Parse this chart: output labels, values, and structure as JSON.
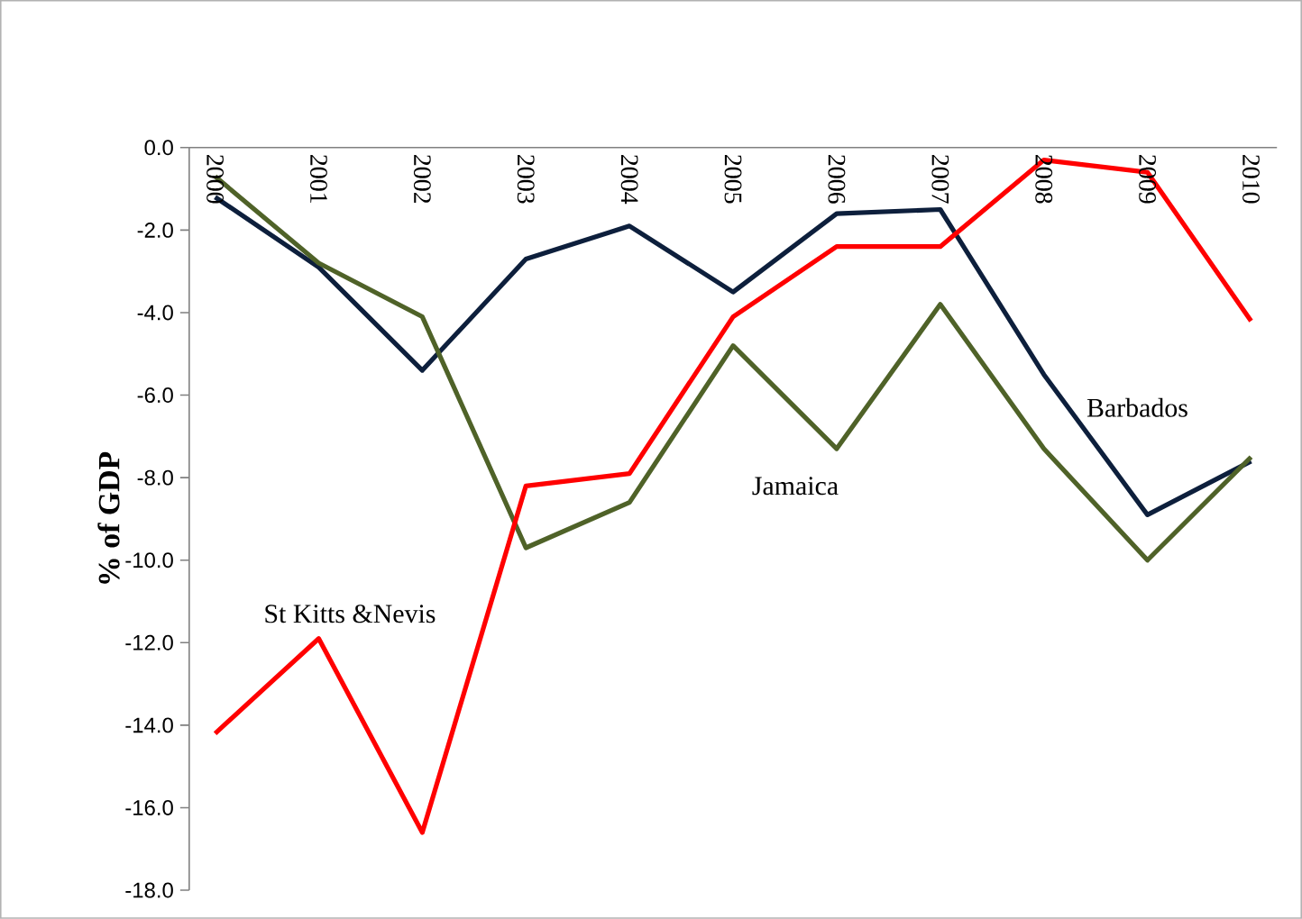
{
  "chart_data": {
    "type": "line",
    "ylabel": "% of GDP",
    "categories": [
      "2000",
      "2001",
      "2002",
      "2003",
      "2004",
      "2005",
      "2006",
      "2007",
      "2008",
      "2009",
      "2010"
    ],
    "series": [
      {
        "name": "Barbados",
        "color": "#0d1f3c",
        "values": [
          -1.2,
          -2.9,
          -5.4,
          -2.7,
          -1.9,
          -3.5,
          -1.6,
          -1.5,
          -5.5,
          -8.9,
          -7.6
        ]
      },
      {
        "name": "Jamaica",
        "color": "#4f6228",
        "values": [
          -0.7,
          -2.8,
          -4.1,
          -9.7,
          -8.6,
          -4.8,
          -7.3,
          -3.8,
          -7.3,
          -10.0,
          -7.5
        ]
      },
      {
        "name": "St Kitts &Nevis",
        "color": "#ff0000",
        "values": [
          -14.2,
          -11.9,
          -16.6,
          -8.2,
          -7.9,
          -4.1,
          -2.4,
          -2.4,
          -0.3,
          -0.6,
          -4.2
        ]
      }
    ],
    "ylim": [
      -18,
      0
    ],
    "yticks": [
      {
        "value": 0,
        "label": "0.0"
      },
      {
        "value": -2,
        "label": "-2.0"
      },
      {
        "value": -4,
        "label": "-4.0"
      },
      {
        "value": -6,
        "label": "-6.0"
      },
      {
        "value": -8,
        "label": "-8.0"
      },
      {
        "value": -10,
        "label": "-10.0"
      },
      {
        "value": -12,
        "label": "-12.0"
      },
      {
        "value": -14,
        "label": "-14.0"
      },
      {
        "value": -16,
        "label": "-16.0"
      },
      {
        "value": -18,
        "label": "-18.0"
      }
    ],
    "grid": false,
    "legend": false,
    "marker": "none",
    "line_style": "solid"
  }
}
